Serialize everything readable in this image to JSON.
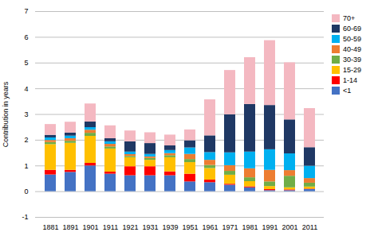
{
  "chart_data": {
    "type": "bar",
    "stacked": true,
    "categories": [
      "1881",
      "1891",
      "1901",
      "1911",
      "1921",
      "1931",
      "1939",
      "1951",
      "1961",
      "1971",
      "1981",
      "1991",
      "2001",
      "2011"
    ],
    "series": [
      {
        "name": "<1",
        "color": "#4472C4",
        "values": [
          0.65,
          0.75,
          1.0,
          0.68,
          0.62,
          0.62,
          0.62,
          0.38,
          0.35,
          0.25,
          0.15,
          0.04,
          0.04,
          0.08
        ]
      },
      {
        "name": "1-14",
        "color": "#FF0000",
        "values": [
          0.18,
          0.08,
          0.1,
          0.08,
          0.35,
          0.35,
          0.15,
          0.3,
          0.1,
          0.04,
          0.04,
          0.04,
          0.03,
          0.02
        ]
      },
      {
        "name": "15-29",
        "color": "#FFC000",
        "values": [
          1.0,
          1.05,
          1.05,
          0.9,
          0.35,
          0.25,
          0.55,
          0.45,
          0.45,
          0.35,
          0.2,
          0.12,
          0.08,
          0.08
        ]
      },
      {
        "name": "30-39",
        "color": "#70AD47",
        "values": [
          0.08,
          0.08,
          0.12,
          0.08,
          0.05,
          0.07,
          0.08,
          0.12,
          0.12,
          0.15,
          0.15,
          0.18,
          0.45,
          0.15
        ]
      },
      {
        "name": "40-49",
        "color": "#ED7D31",
        "values": [
          0.08,
          0.1,
          0.12,
          0.1,
          0.07,
          0.06,
          0.08,
          0.2,
          0.2,
          0.22,
          0.35,
          0.45,
          0.22,
          0.18
        ]
      },
      {
        "name": "50-59",
        "color": "#00B0F0",
        "values": [
          0.1,
          0.1,
          0.1,
          0.1,
          0.1,
          0.1,
          0.12,
          0.25,
          0.3,
          0.5,
          0.65,
          0.8,
          0.65,
          0.48
        ]
      },
      {
        "name": "60-69",
        "color": "#1F3864",
        "values": [
          0.1,
          0.12,
          0.22,
          0.12,
          0.4,
          0.42,
          0.18,
          0.28,
          0.65,
          1.48,
          1.85,
          1.72,
          1.32,
          0.72
        ]
      },
      {
        "name": "70+",
        "color": "#F4B8C1",
        "values": [
          0.42,
          0.42,
          0.7,
          0.5,
          0.42,
          0.42,
          0.42,
          0.42,
          1.4,
          1.72,
          1.82,
          2.52,
          2.22,
          1.52
        ]
      }
    ],
    "ylabel": "Contribution in years",
    "ylim": [
      -1,
      7
    ],
    "yticks": [
      -1,
      0,
      1,
      2,
      3,
      4,
      5,
      6,
      7
    ],
    "grid": true,
    "legend": "right"
  }
}
